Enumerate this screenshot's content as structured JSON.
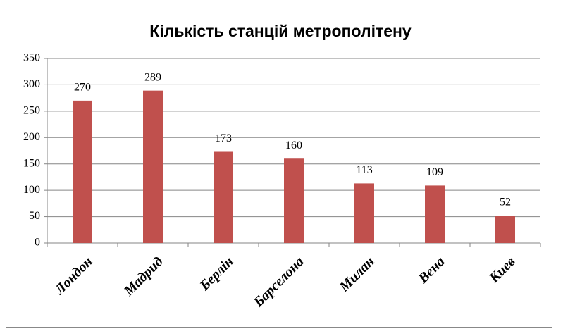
{
  "chart_data": {
    "type": "bar",
    "title": "Кількість станцій метрополітену",
    "categories": [
      "Лондон",
      "Мадрид",
      "Берлін",
      "Барселона",
      "Милан",
      "Вена",
      "Киев"
    ],
    "values": [
      270,
      289,
      173,
      160,
      113,
      109,
      52
    ],
    "color": "#c0504d",
    "ylim": [
      0,
      350
    ],
    "yticks": [
      0,
      50,
      100,
      150,
      200,
      250,
      300,
      350
    ],
    "grid": true
  }
}
